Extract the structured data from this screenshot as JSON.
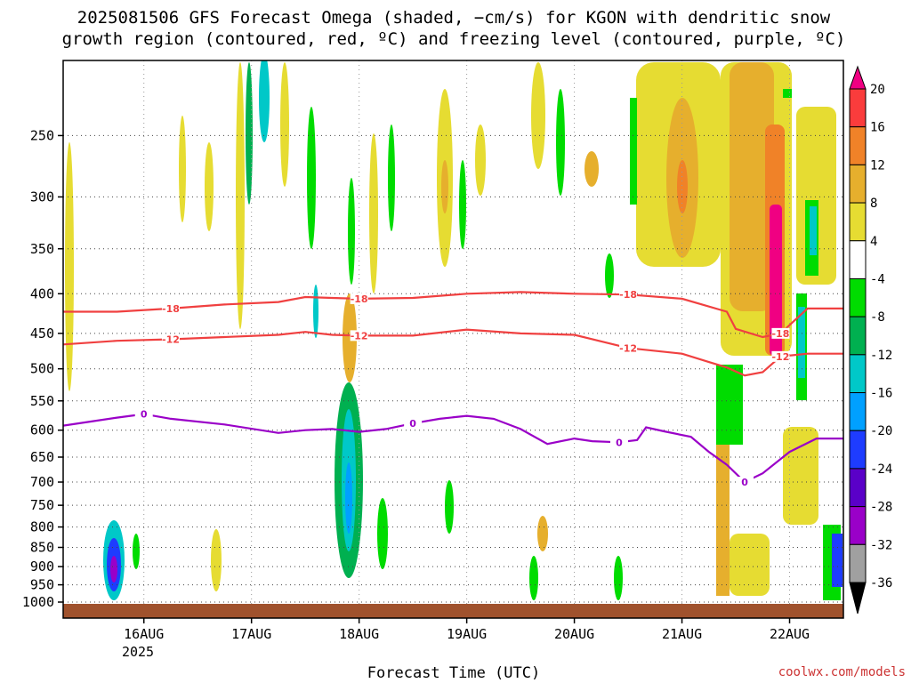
{
  "title": {
    "line1": "2025081506 GFS Forecast Omega (shaded, −cm/s) for KGON with dendritic snow",
    "line2": "growth region (contoured, red, ºC) and freezing level (contoured, purple, ºC)"
  },
  "xlabel": "Forecast Time (UTC)",
  "year_label": "2025",
  "credit": "coolwx.com/models",
  "chart_data": {
    "type": "heatmap",
    "title": "2025081506 GFS Forecast Omega (shaded, −cm/s) for KGON with dendritic snow growth region (contoured, red, ºC) and freezing level (contoured, purple, ºC)",
    "xlabel": "Forecast Time (UTC)",
    "ylabel": "",
    "x_range_hours_from_2025-08-15T06": [
      0,
      174
    ],
    "y_range_hPa": [
      1000,
      200
    ],
    "y_scale": "log-pressure",
    "grid": true,
    "x_ticks": [
      {
        "label": "16AUG",
        "hour": 18
      },
      {
        "label": "17AUG",
        "hour": 42
      },
      {
        "label": "18AUG",
        "hour": 66
      },
      {
        "label": "19AUG",
        "hour": 90
      },
      {
        "label": "20AUG",
        "hour": 114
      },
      {
        "label": "21AUG",
        "hour": 138
      },
      {
        "label": "22AUG",
        "hour": 162
      }
    ],
    "y_ticks": [
      250,
      300,
      350,
      400,
      450,
      500,
      550,
      600,
      650,
      700,
      750,
      800,
      850,
      900,
      950,
      1000
    ],
    "colorbar": {
      "levels": [
        -36,
        -32,
        -28,
        -24,
        -20,
        -16,
        -12,
        -8,
        -4,
        4,
        8,
        12,
        16,
        20
      ],
      "colors": [
        "#000000",
        "#a0a0a0",
        "#9a00c8",
        "#5a00c8",
        "#1e3cff",
        "#00a0ff",
        "#00c8c8",
        "#00b050",
        "#00dc00",
        "#ffffff",
        "#e6dc32",
        "#e6af2d",
        "#f08228",
        "#fa3c3c",
        "#f00082"
      ]
    },
    "contours": [
      {
        "level": -18,
        "label": "-18",
        "color": "#f04040",
        "x": [
          0,
          12,
          24,
          36,
          48,
          54,
          60,
          66,
          78,
          90,
          102,
          114,
          126,
          138,
          148,
          150,
          156,
          160,
          166,
          174
        ],
        "y": [
          422,
          422,
          418,
          413,
          410,
          404,
          405,
          406,
          405,
          400,
          398,
          400,
          401,
          406,
          422,
          444,
          455,
          450,
          418,
          418
        ]
      },
      {
        "level": -12,
        "label": "-12",
        "color": "#f04040",
        "x": [
          0,
          12,
          24,
          36,
          48,
          54,
          60,
          66,
          78,
          90,
          102,
          114,
          126,
          138,
          144,
          148,
          152,
          156,
          160,
          166,
          174
        ],
        "y": [
          465,
          460,
          458,
          455,
          452,
          448,
          452,
          453,
          453,
          445,
          450,
          452,
          470,
          478,
          490,
          498,
          510,
          505,
          482,
          478,
          478
        ]
      },
      {
        "level": 0,
        "label": "0",
        "color": "#9a00c8",
        "x": [
          0,
          6,
          12,
          18,
          24,
          36,
          48,
          54,
          60,
          66,
          72,
          78,
          84,
          90,
          96,
          102,
          108,
          114,
          118,
          124,
          128,
          130,
          134,
          140,
          144,
          148,
          152,
          156,
          162,
          168,
          174
        ],
        "y": [
          592,
          585,
          578,
          572,
          580,
          590,
          605,
          600,
          598,
          603,
          598,
          588,
          580,
          575,
          580,
          598,
          625,
          615,
          620,
          622,
          618,
          595,
          602,
          612,
          640,
          665,
          700,
          682,
          640,
          615,
          615
        ]
      }
    ]
  }
}
